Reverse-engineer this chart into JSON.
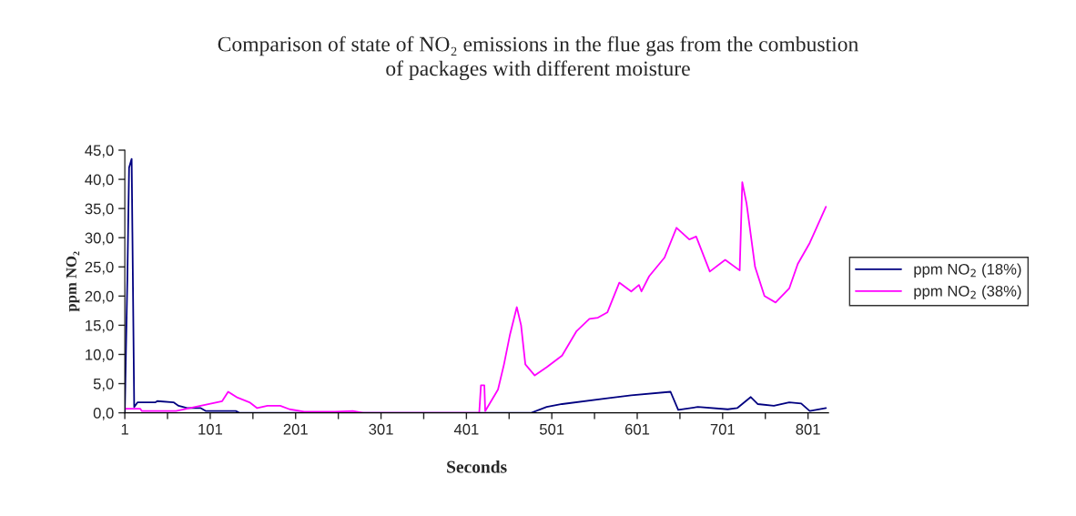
{
  "chart_data": {
    "type": "line",
    "title": "Comparison of state of NO₂ emissions in the flue gas from the combustion\nof packages with different moisture",
    "xlabel": "Seconds",
    "ylabel": "ppm NO₂",
    "legend": "right",
    "grid": false,
    "xlim": [
      1,
      825
    ],
    "xticks": [
      1,
      {
        "value": 51,
        "label": null
      },
      101,
      {
        "value": 151,
        "label": null
      },
      201,
      {
        "value": 251,
        "label": null
      },
      301,
      {
        "value": 351,
        "label": null
      },
      401,
      {
        "value": 451,
        "label": null
      },
      501,
      {
        "value": 551,
        "label": null
      },
      601,
      {
        "value": 651,
        "label": null
      },
      701,
      {
        "value": 751,
        "label": null
      },
      801
    ],
    "ylim": [
      0,
      45
    ],
    "yticks": [
      {
        "value": 0,
        "label": "0,0"
      },
      {
        "value": 5,
        "label": "5,0"
      },
      {
        "value": 10,
        "label": "10,0"
      },
      {
        "value": 15,
        "label": "15,0"
      },
      {
        "value": 20,
        "label": "20,0"
      },
      {
        "value": 25,
        "label": "25,0"
      },
      {
        "value": 30,
        "label": "30,0"
      },
      {
        "value": 35,
        "label": "35,0"
      },
      {
        "value": 40,
        "label": "40,0"
      },
      {
        "value": 45,
        "label": "45,0"
      }
    ],
    "series": [
      {
        "name": "ppm NO$_{2}$ (18%)",
        "color": "#000080",
        "x": [
          1,
          2,
          4,
          6,
          9,
          12,
          16,
          37,
          39,
          58,
          64,
          74,
          90,
          96,
          131,
          135,
          477,
          495,
          513,
          566,
          594,
          640,
          649,
          672,
          707,
          718,
          734,
          742,
          761,
          779,
          793,
          803,
          822
        ],
        "values": [
          0,
          8,
          23,
          42,
          43.5,
          1,
          1.8,
          1.8,
          2,
          1.8,
          1.2,
          0.8,
          0.8,
          0.3,
          0.3,
          0,
          0,
          1,
          1.5,
          2.5,
          3,
          3.6,
          0.5,
          1,
          0.6,
          0.8,
          2.7,
          1.5,
          1.2,
          1.8,
          1.6,
          0.3,
          0.8
        ]
      },
      {
        "name": "ppm NO$_{2}$ (38%)",
        "color": "#ff00ff",
        "x": [
          2,
          19,
          21,
          61,
          115,
          122,
          133,
          147,
          156,
          168,
          183,
          194,
          211,
          247,
          268,
          280,
          416,
          418,
          422,
          423,
          438,
          445,
          452,
          460,
          465,
          470,
          481,
          495,
          513,
          530,
          545,
          555,
          566,
          580,
          594,
          603,
          606,
          615,
          633,
          647,
          662,
          670,
          686,
          704,
          721,
          724,
          729,
          739,
          750,
          763,
          779,
          789,
          803,
          822
        ],
        "values": [
          0.7,
          0.7,
          0.3,
          0.3,
          2,
          3.6,
          2.6,
          1.8,
          0.8,
          1.2,
          1.2,
          0.6,
          0.2,
          0.2,
          0.3,
          0,
          0,
          4.7,
          4.7,
          0.3,
          4,
          8.3,
          13.4,
          18.1,
          15,
          8.3,
          6.4,
          7.8,
          9.8,
          14,
          16.1,
          16.3,
          17.2,
          22.3,
          20.8,
          21.9,
          20.8,
          23.4,
          26.6,
          31.7,
          29.7,
          30.2,
          24.2,
          26.2,
          24.4,
          39.5,
          35.9,
          25,
          20,
          18.9,
          21.3,
          25.5,
          29.1,
          35.3
        ]
      }
    ]
  }
}
